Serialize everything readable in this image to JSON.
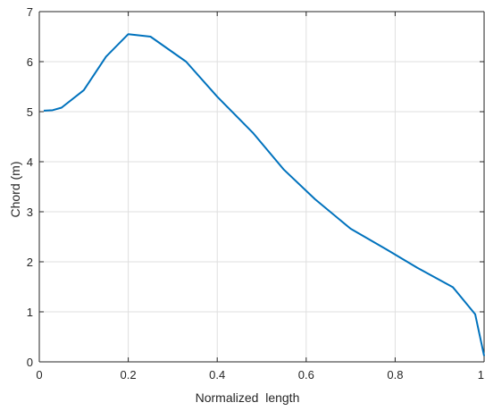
{
  "chart_data": {
    "type": "line",
    "title": "",
    "xlabel": "Normalized  length",
    "ylabel": "Chord (m)",
    "xlim": [
      0,
      1
    ],
    "ylim": [
      0,
      7
    ],
    "grid": true,
    "xticks": [
      0,
      0.2,
      0.4,
      0.6,
      0.8,
      1
    ],
    "xtick_labels": [
      "0",
      "0.2",
      "0.4",
      "0.6",
      "0.8",
      "1"
    ],
    "yticks": [
      0,
      1,
      2,
      3,
      4,
      5,
      6,
      7
    ],
    "ytick_labels": [
      "0",
      "1",
      "2",
      "3",
      "4",
      "5",
      "6",
      "7"
    ],
    "line_color": "#0072BD",
    "series": [
      {
        "x": [
          0.01,
          0.03,
          0.05,
          0.1,
          0.15,
          0.2,
          0.25,
          0.33,
          0.4,
          0.48,
          0.55,
          0.62,
          0.7,
          0.78,
          0.85,
          0.93,
          0.98,
          1.0
        ],
        "values": [
          5.02,
          5.03,
          5.08,
          5.43,
          6.1,
          6.55,
          6.5,
          6.0,
          5.3,
          4.58,
          3.84,
          3.25,
          2.66,
          2.25,
          1.88,
          1.49,
          0.95,
          0.12
        ]
      }
    ]
  }
}
